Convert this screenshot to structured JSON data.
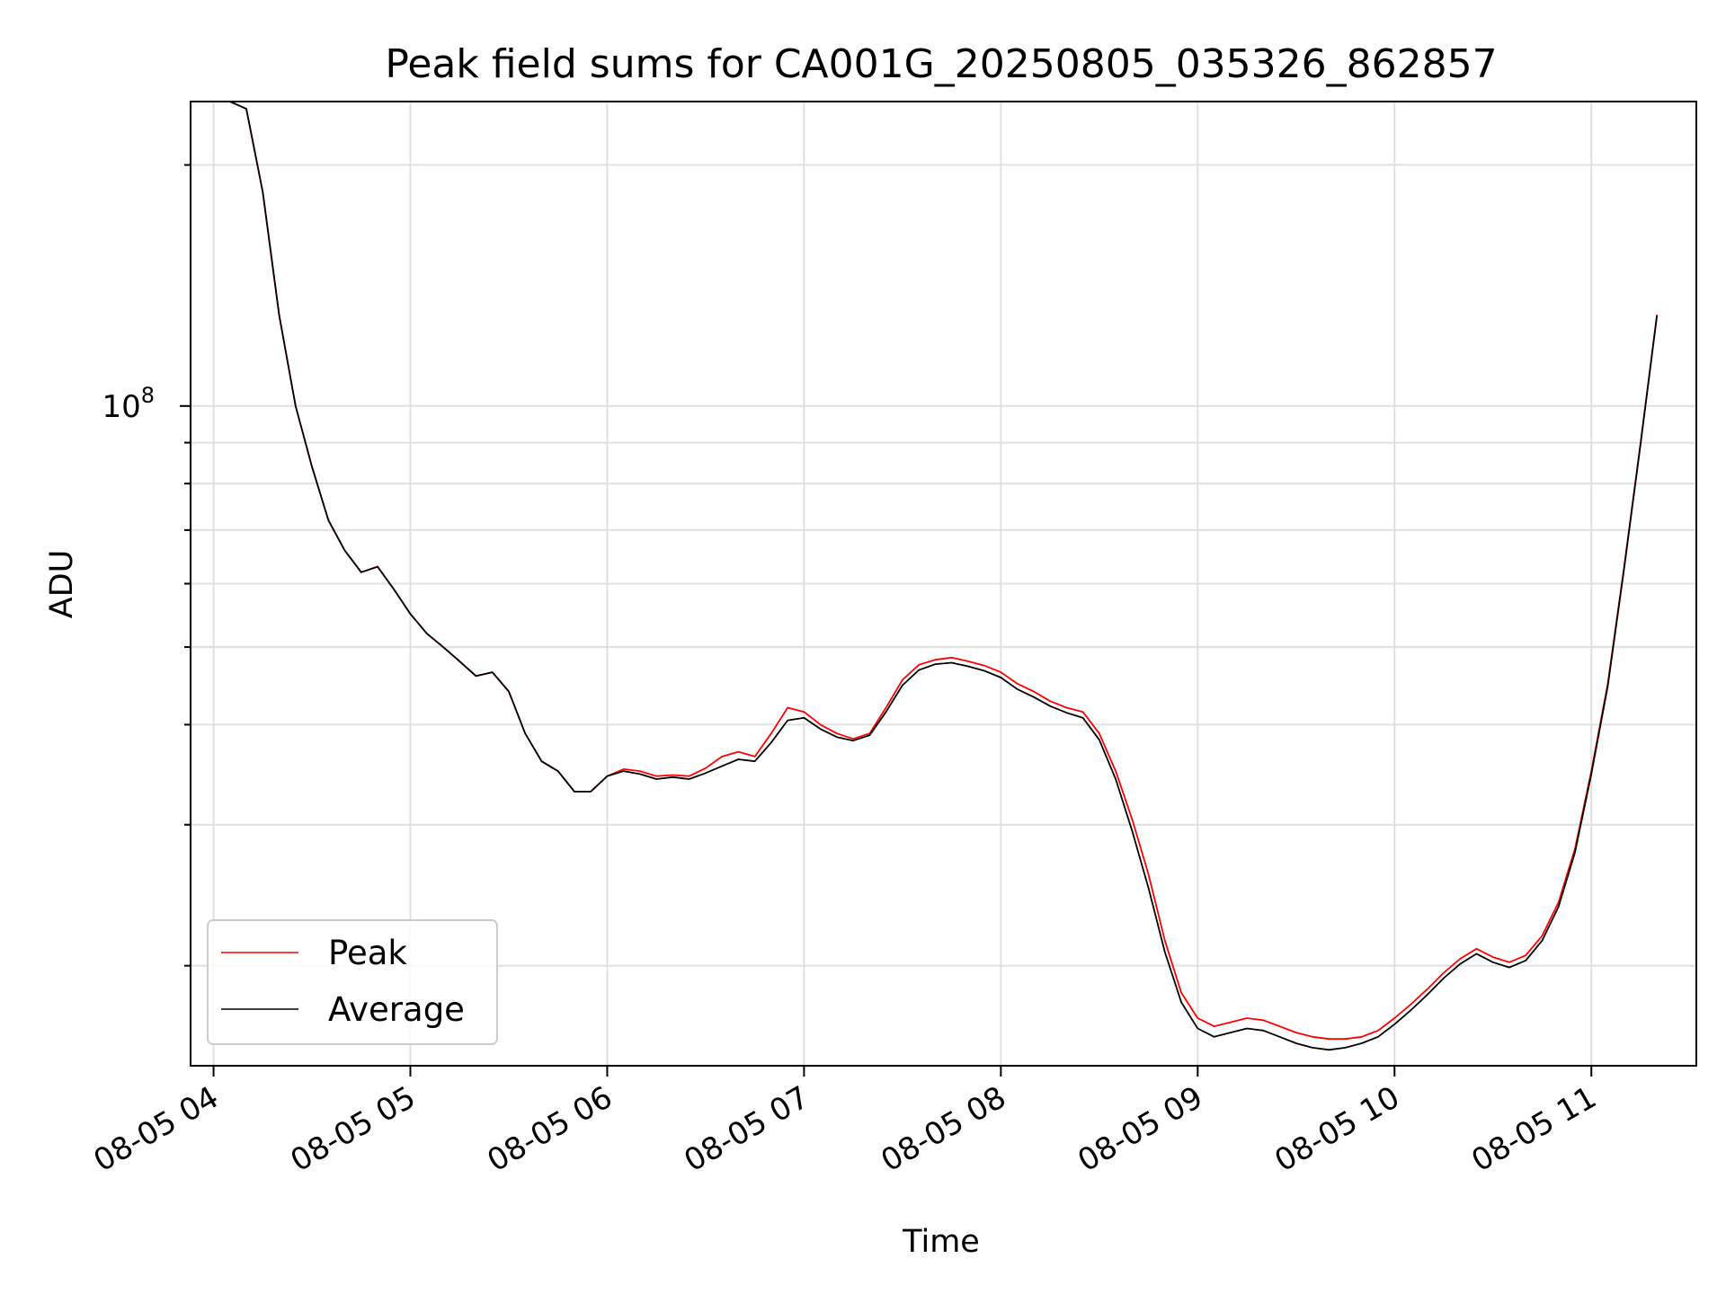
{
  "chart_data": {
    "type": "line",
    "title": "Peak field sums for CA001G_20250805_035326_862857",
    "xlabel": "Time",
    "ylabel": "ADU",
    "yscale": "log",
    "grid": true,
    "legend_position": "lower-left",
    "xlim": [
      "2025-08-05 03:53",
      "2025-08-05 11:32"
    ],
    "ylim": [
      15000000,
      240000000
    ],
    "x_ticks": [
      {
        "x": "2025-08-05 04:00",
        "label": "08-05 04"
      },
      {
        "x": "2025-08-05 05:00",
        "label": "08-05 05"
      },
      {
        "x": "2025-08-05 06:00",
        "label": "08-05 06"
      },
      {
        "x": "2025-08-05 07:00",
        "label": "08-05 07"
      },
      {
        "x": "2025-08-05 08:00",
        "label": "08-05 08"
      },
      {
        "x": "2025-08-05 09:00",
        "label": "08-05 09"
      },
      {
        "x": "2025-08-05 10:00",
        "label": "08-05 10"
      },
      {
        "x": "2025-08-05 11:00",
        "label": "08-05 11"
      }
    ],
    "y_ticks": [
      {
        "y": 100000000,
        "base": "10",
        "exp": "8"
      }
    ],
    "y_minor_ticks": [
      20000000,
      30000000,
      40000000,
      50000000,
      60000000,
      70000000,
      80000000,
      90000000,
      200000000
    ],
    "x": [
      "2025-08-05 03:55",
      "2025-08-05 04:00",
      "2025-08-05 04:05",
      "2025-08-05 04:10",
      "2025-08-05 04:15",
      "2025-08-05 04:20",
      "2025-08-05 04:25",
      "2025-08-05 04:30",
      "2025-08-05 04:35",
      "2025-08-05 04:40",
      "2025-08-05 04:45",
      "2025-08-05 04:50",
      "2025-08-05 04:55",
      "2025-08-05 05:00",
      "2025-08-05 05:05",
      "2025-08-05 05:10",
      "2025-08-05 05:15",
      "2025-08-05 05:20",
      "2025-08-05 05:25",
      "2025-08-05 05:30",
      "2025-08-05 05:35",
      "2025-08-05 05:40",
      "2025-08-05 05:45",
      "2025-08-05 05:50",
      "2025-08-05 05:55",
      "2025-08-05 06:00",
      "2025-08-05 06:05",
      "2025-08-05 06:10",
      "2025-08-05 06:15",
      "2025-08-05 06:20",
      "2025-08-05 06:25",
      "2025-08-05 06:30",
      "2025-08-05 06:35",
      "2025-08-05 06:40",
      "2025-08-05 06:45",
      "2025-08-05 06:50",
      "2025-08-05 06:55",
      "2025-08-05 07:00",
      "2025-08-05 07:05",
      "2025-08-05 07:10",
      "2025-08-05 07:15",
      "2025-08-05 07:20",
      "2025-08-05 07:25",
      "2025-08-05 07:30",
      "2025-08-05 07:35",
      "2025-08-05 07:40",
      "2025-08-05 07:45",
      "2025-08-05 07:50",
      "2025-08-05 07:55",
      "2025-08-05 08:00",
      "2025-08-05 08:05",
      "2025-08-05 08:10",
      "2025-08-05 08:15",
      "2025-08-05 08:20",
      "2025-08-05 08:25",
      "2025-08-05 08:30",
      "2025-08-05 08:35",
      "2025-08-05 08:40",
      "2025-08-05 08:45",
      "2025-08-05 08:50",
      "2025-08-05 08:55",
      "2025-08-05 09:00",
      "2025-08-05 09:05",
      "2025-08-05 09:10",
      "2025-08-05 09:15",
      "2025-08-05 09:20",
      "2025-08-05 09:25",
      "2025-08-05 09:30",
      "2025-08-05 09:35",
      "2025-08-05 09:40",
      "2025-08-05 09:45",
      "2025-08-05 09:50",
      "2025-08-05 09:55",
      "2025-08-05 10:00",
      "2025-08-05 10:05",
      "2025-08-05 10:10",
      "2025-08-05 10:15",
      "2025-08-05 10:20",
      "2025-08-05 10:25",
      "2025-08-05 10:30",
      "2025-08-05 10:35",
      "2025-08-05 10:40",
      "2025-08-05 10:45",
      "2025-08-05 10:50",
      "2025-08-05 10:55",
      "2025-08-05 11:00",
      "2025-08-05 11:05",
      "2025-08-05 11:10",
      "2025-08-05 11:15",
      "2025-08-05 11:20"
    ],
    "series": [
      {
        "name": "Peak",
        "color": "#ff0000",
        "values": [
          240000000,
          240000000,
          240000000,
          235000000,
          185000000,
          130000000,
          100000000,
          84000000,
          72000000,
          66000000,
          62000000,
          63000000,
          59000000,
          55000000,
          52000000,
          50000000,
          48000000,
          46000000,
          46500000,
          44000000,
          39000000,
          36000000,
          35000000,
          33000000,
          33000000,
          34500000,
          35200000,
          35000000,
          34500000,
          34600000,
          34500000,
          35300000,
          36500000,
          37000000,
          36500000,
          39000000,
          42000000,
          41500000,
          40000000,
          39000000,
          38400000,
          39000000,
          42000000,
          45500000,
          47500000,
          48200000,
          48500000,
          48000000,
          47400000,
          46500000,
          45000000,
          44000000,
          42800000,
          42000000,
          41500000,
          39000000,
          35000000,
          30500000,
          26000000,
          21500000,
          18500000,
          17200000,
          16800000,
          17000000,
          17200000,
          17100000,
          16800000,
          16500000,
          16300000,
          16200000,
          16200000,
          16300000,
          16600000,
          17200000,
          17900000,
          18700000,
          19600000,
          20400000,
          21000000,
          20500000,
          20200000,
          20600000,
          21800000,
          24000000,
          28000000,
          35000000,
          45000000,
          63000000,
          90000000,
          130000000
        ]
      },
      {
        "name": "Average",
        "color": "#000000",
        "values": [
          240000000,
          240000000,
          240000000,
          235000000,
          185000000,
          130000000,
          100000000,
          84000000,
          72000000,
          66000000,
          62000000,
          63000000,
          59000000,
          55000000,
          52000000,
          50000000,
          48000000,
          46000000,
          46500000,
          44000000,
          39000000,
          36000000,
          35000000,
          33000000,
          33000000,
          34500000,
          35000000,
          34700000,
          34200000,
          34400000,
          34200000,
          34800000,
          35500000,
          36200000,
          36000000,
          38000000,
          40500000,
          40800000,
          39500000,
          38600000,
          38200000,
          38800000,
          41500000,
          44800000,
          46800000,
          47600000,
          47800000,
          47300000,
          46700000,
          45800000,
          44300000,
          43300000,
          42200000,
          41400000,
          40800000,
          38300000,
          34200000,
          29500000,
          25000000,
          20800000,
          18000000,
          16700000,
          16300000,
          16500000,
          16700000,
          16600000,
          16300000,
          16000000,
          15800000,
          15700000,
          15800000,
          16000000,
          16300000,
          16900000,
          17600000,
          18400000,
          19300000,
          20100000,
          20700000,
          20200000,
          19900000,
          20300000,
          21500000,
          23700000,
          27700000,
          34700000,
          44700000,
          62700000,
          89700000,
          129700000
        ]
      }
    ]
  }
}
